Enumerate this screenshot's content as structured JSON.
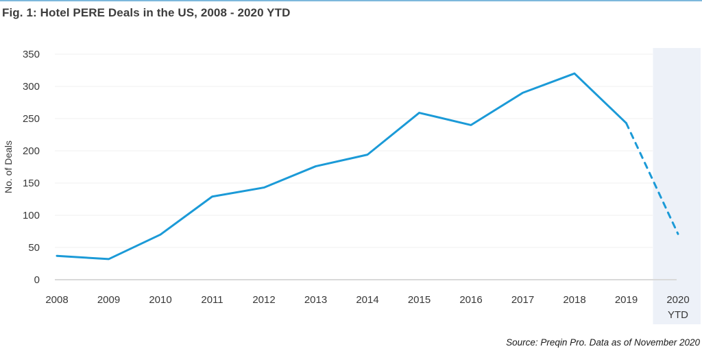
{
  "header": {
    "title": "Fig. 1: Hotel PERE Deals in the US, 2008 - 2020 YTD"
  },
  "footer": {
    "source": "Source: Preqin Pro. Data as of November 2020"
  },
  "colors": {
    "accent_border": "#7db8dc",
    "line": "#1b9ad7",
    "highlight_band": "#edf1f8",
    "gridline": "#f2f2f2",
    "zero_axis": "#d9d9d9",
    "text": "#3d3d3d"
  },
  "chart_data": {
    "type": "line",
    "title": "Fig. 1: Hotel PERE Deals in the US, 2008 - 2020 YTD",
    "categories": [
      "2008",
      "2009",
      "2010",
      "2011",
      "2012",
      "2013",
      "2014",
      "2015",
      "2016",
      "2017",
      "2018",
      "2019",
      "2020 YTD"
    ],
    "series": [
      {
        "name": "No. of Deals",
        "values": [
          37,
          32,
          70,
          129,
          143,
          176,
          194,
          259,
          240,
          290,
          320,
          243,
          71
        ],
        "color": "#1b9ad7",
        "style_note": "solid line 2008-2019, dashed segment 2019 to 2020 YTD"
      }
    ],
    "xlabel": "",
    "ylabel": "No. of Deals",
    "ylim": [
      0,
      350
    ],
    "yticks": [
      0,
      50,
      100,
      150,
      200,
      250,
      300,
      350
    ],
    "grid": true,
    "legend": "none",
    "highlight_band_category": "2020 YTD"
  }
}
